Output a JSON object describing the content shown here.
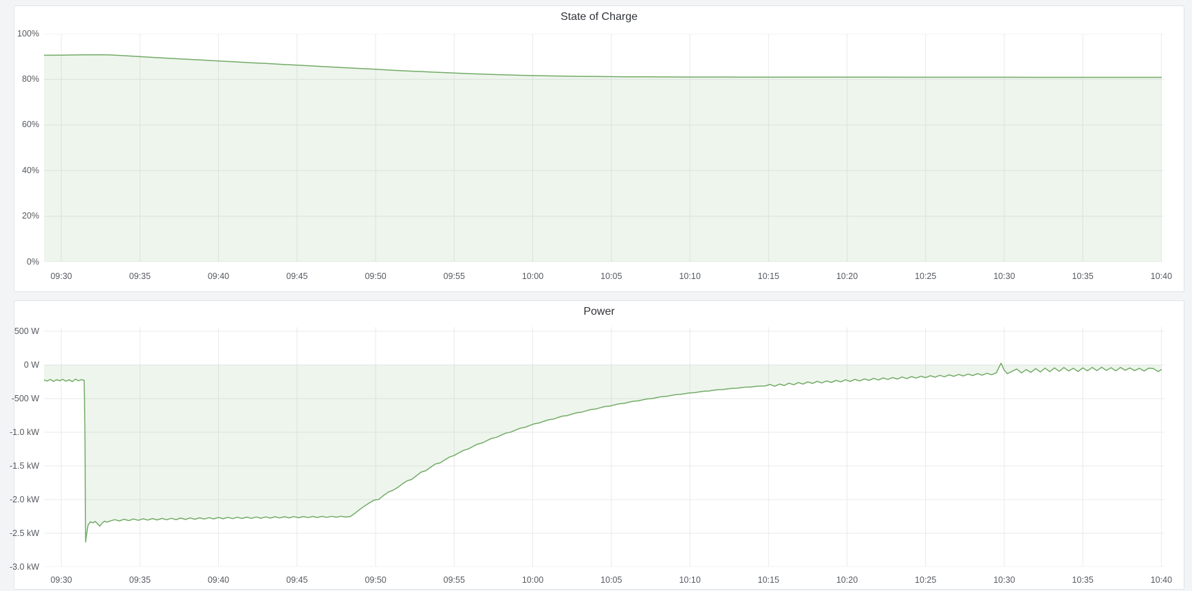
{
  "colors": {
    "page_background": "#f3f4f6",
    "panel_background": "#ffffff",
    "panel_border": "#dfe3e8",
    "grid": "#e9eaec",
    "axis_text": "#55595f",
    "title_text": "#303338",
    "series_line": "#72ab66",
    "series_fill": "rgba(104,168,92,0.11)"
  },
  "chart_data": [
    {
      "type": "area",
      "title": "State of Charge",
      "unit": "percent",
      "legend": "none",
      "grid": "on",
      "x_domain_min": -1.1,
      "x_domain_max": 70.2,
      "y_domain_min": 0,
      "y_domain_max": 100,
      "baseline": 0,
      "x_ticks": [
        {
          "t": 0,
          "label": "09:30"
        },
        {
          "t": 5,
          "label": "09:35"
        },
        {
          "t": 10,
          "label": "09:40"
        },
        {
          "t": 15,
          "label": "09:45"
        },
        {
          "t": 20,
          "label": "09:50"
        },
        {
          "t": 25,
          "label": "09:55"
        },
        {
          "t": 30,
          "label": "10:00"
        },
        {
          "t": 35,
          "label": "10:05"
        },
        {
          "t": 40,
          "label": "10:10"
        },
        {
          "t": 45,
          "label": "10:15"
        },
        {
          "t": 50,
          "label": "10:20"
        },
        {
          "t": 55,
          "label": "10:25"
        },
        {
          "t": 60,
          "label": "10:30"
        },
        {
          "t": 65,
          "label": "10:35"
        },
        {
          "t": 70,
          "label": "10:40"
        }
      ],
      "y_ticks": [
        {
          "v": 100,
          "label": "100%"
        },
        {
          "v": 80,
          "label": "80%"
        },
        {
          "v": 60,
          "label": "60%"
        },
        {
          "v": 40,
          "label": "40%"
        },
        {
          "v": 20,
          "label": "20%"
        },
        {
          "v": 0,
          "label": "0%"
        }
      ],
      "points": [
        [
          -1.1,
          90.55
        ],
        [
          0,
          90.6
        ],
        [
          1,
          90.68
        ],
        [
          2,
          90.74
        ],
        [
          2.6,
          90.78
        ],
        [
          3.2,
          90.66
        ],
        [
          4,
          90.35
        ],
        [
          5,
          89.95
        ],
        [
          6,
          89.55
        ],
        [
          7,
          89.15
        ],
        [
          8,
          88.8
        ],
        [
          9,
          88.42
        ],
        [
          10,
          88.05
        ],
        [
          11,
          87.68
        ],
        [
          12,
          87.3
        ],
        [
          13,
          86.95
        ],
        [
          14,
          86.58
        ],
        [
          15,
          86.2
        ],
        [
          16,
          85.85
        ],
        [
          17,
          85.48
        ],
        [
          18,
          85.1
        ],
        [
          19,
          84.75
        ],
        [
          20,
          84.4
        ],
        [
          21,
          84.02
        ],
        [
          22,
          83.68
        ],
        [
          23,
          83.35
        ],
        [
          24,
          83.05
        ],
        [
          25,
          82.75
        ],
        [
          26,
          82.48
        ],
        [
          27,
          82.22
        ],
        [
          28,
          82.0
        ],
        [
          29,
          81.8
        ],
        [
          30,
          81.63
        ],
        [
          31,
          81.5
        ],
        [
          32,
          81.4
        ],
        [
          33,
          81.3
        ],
        [
          34,
          81.22
        ],
        [
          35,
          81.16
        ],
        [
          36,
          81.11
        ],
        [
          37,
          81.07
        ],
        [
          38,
          81.04
        ],
        [
          39,
          81.02
        ],
        [
          40,
          81.0
        ],
        [
          42,
          80.98
        ],
        [
          44,
          80.96
        ],
        [
          46,
          80.95
        ],
        [
          48,
          80.94
        ],
        [
          50,
          80.93
        ],
        [
          52,
          80.92
        ],
        [
          54,
          80.91
        ],
        [
          56,
          80.9
        ],
        [
          58,
          80.9
        ],
        [
          60,
          80.89
        ],
        [
          62,
          80.88
        ],
        [
          64,
          80.88
        ],
        [
          66,
          80.87
        ],
        [
          68,
          80.87
        ],
        [
          70,
          80.86
        ]
      ]
    },
    {
      "type": "area",
      "title": "Power",
      "unit": "watt",
      "legend": "none",
      "grid": "on",
      "x_domain_min": -1.1,
      "x_domain_max": 70.2,
      "y_domain_min": -3000,
      "y_domain_max": 561,
      "baseline": 0,
      "x_ticks": [
        {
          "t": 0,
          "label": "09:30"
        },
        {
          "t": 5,
          "label": "09:35"
        },
        {
          "t": 10,
          "label": "09:40"
        },
        {
          "t": 15,
          "label": "09:45"
        },
        {
          "t": 20,
          "label": "09:50"
        },
        {
          "t": 25,
          "label": "09:55"
        },
        {
          "t": 30,
          "label": "10:00"
        },
        {
          "t": 35,
          "label": "10:05"
        },
        {
          "t": 40,
          "label": "10:10"
        },
        {
          "t": 45,
          "label": "10:15"
        },
        {
          "t": 50,
          "label": "10:20"
        },
        {
          "t": 55,
          "label": "10:25"
        },
        {
          "t": 60,
          "label": "10:30"
        },
        {
          "t": 65,
          "label": "10:35"
        },
        {
          "t": 70,
          "label": "10:40"
        }
      ],
      "y_ticks": [
        {
          "v": 500,
          "label": "500 W"
        },
        {
          "v": 0,
          "label": "0 W"
        },
        {
          "v": -500,
          "label": "-500 W"
        },
        {
          "v": -1000,
          "label": "-1.0 kW"
        },
        {
          "v": -1500,
          "label": "-1.5 kW"
        },
        {
          "v": -2000,
          "label": "-2.0 kW"
        },
        {
          "v": -2500,
          "label": "-2.5 kW"
        },
        {
          "v": -3000,
          "label": "-3.0 kW"
        }
      ],
      "points": [
        [
          -1.1,
          -225
        ],
        [
          -0.9,
          -240
        ],
        [
          -0.7,
          -215
        ],
        [
          -0.5,
          -245
        ],
        [
          -0.3,
          -220
        ],
        [
          -0.1,
          -235
        ],
        [
          0.1,
          -215
        ],
        [
          0.3,
          -242
        ],
        [
          0.5,
          -222
        ],
        [
          0.7,
          -248
        ],
        [
          0.9,
          -212
        ],
        [
          1.1,
          -236
        ],
        [
          1.3,
          -218
        ],
        [
          1.45,
          -230
        ],
        [
          1.5,
          -900
        ],
        [
          1.55,
          -2630
        ],
        [
          1.62,
          -2500
        ],
        [
          1.7,
          -2380
        ],
        [
          1.85,
          -2330
        ],
        [
          2.0,
          -2345
        ],
        [
          2.15,
          -2325
        ],
        [
          2.3,
          -2355
        ],
        [
          2.45,
          -2395
        ],
        [
          2.6,
          -2350
        ],
        [
          2.75,
          -2320
        ],
        [
          2.9,
          -2335
        ],
        [
          3.1,
          -2318
        ],
        [
          3.4,
          -2298
        ],
        [
          3.7,
          -2316
        ],
        [
          4.0,
          -2292
        ],
        [
          4.3,
          -2312
        ],
        [
          4.6,
          -2288
        ],
        [
          4.9,
          -2308
        ],
        [
          5.2,
          -2285
        ],
        [
          5.5,
          -2304
        ],
        [
          5.8,
          -2282
        ],
        [
          6.1,
          -2302
        ],
        [
          6.4,
          -2280
        ],
        [
          6.7,
          -2299
        ],
        [
          7.0,
          -2278
        ],
        [
          7.3,
          -2297
        ],
        [
          7.6,
          -2275
        ],
        [
          7.9,
          -2295
        ],
        [
          8.2,
          -2272
        ],
        [
          8.5,
          -2292
        ],
        [
          8.8,
          -2270
        ],
        [
          9.1,
          -2289
        ],
        [
          9.4,
          -2268
        ],
        [
          9.7,
          -2287
        ],
        [
          10.0,
          -2265
        ],
        [
          10.3,
          -2285
        ],
        [
          10.6,
          -2263
        ],
        [
          10.9,
          -2283
        ],
        [
          11.2,
          -2262
        ],
        [
          11.5,
          -2281
        ],
        [
          11.8,
          -2260
        ],
        [
          12.1,
          -2279
        ],
        [
          12.4,
          -2258
        ],
        [
          12.7,
          -2277
        ],
        [
          13.0,
          -2257
        ],
        [
          13.3,
          -2275
        ],
        [
          13.6,
          -2255
        ],
        [
          13.9,
          -2273
        ],
        [
          14.2,
          -2254
        ],
        [
          14.5,
          -2271
        ],
        [
          14.8,
          -2252
        ],
        [
          15.1,
          -2269
        ],
        [
          15.4,
          -2251
        ],
        [
          15.7,
          -2267
        ],
        [
          16.0,
          -2250
        ],
        [
          16.3,
          -2265
        ],
        [
          16.6,
          -2249
        ],
        [
          16.9,
          -2263
        ],
        [
          17.2,
          -2248
        ],
        [
          17.5,
          -2261
        ],
        [
          17.8,
          -2247
        ],
        [
          18.1,
          -2259
        ],
        [
          18.4,
          -2250
        ],
        [
          18.7,
          -2200
        ],
        [
          19.0,
          -2145
        ],
        [
          19.3,
          -2095
        ],
        [
          19.6,
          -2050
        ],
        [
          19.9,
          -2008
        ],
        [
          20.2,
          -1998
        ],
        [
          20.5,
          -1940
        ],
        [
          20.8,
          -1890
        ],
        [
          21.1,
          -1862
        ],
        [
          21.4,
          -1820
        ],
        [
          21.7,
          -1768
        ],
        [
          22.0,
          -1722
        ],
        [
          22.3,
          -1700
        ],
        [
          22.6,
          -1645
        ],
        [
          22.9,
          -1592
        ],
        [
          23.2,
          -1570
        ],
        [
          23.5,
          -1520
        ],
        [
          23.8,
          -1472
        ],
        [
          24.1,
          -1455
        ],
        [
          24.4,
          -1410
        ],
        [
          24.7,
          -1368
        ],
        [
          25.0,
          -1345
        ],
        [
          25.3,
          -1305
        ],
        [
          25.6,
          -1268
        ],
        [
          25.9,
          -1248
        ],
        [
          26.2,
          -1210
        ],
        [
          26.5,
          -1175
        ],
        [
          26.8,
          -1158
        ],
        [
          27.1,
          -1122
        ],
        [
          27.4,
          -1090
        ],
        [
          27.7,
          -1075
        ],
        [
          28.0,
          -1042
        ],
        [
          28.3,
          -1012
        ],
        [
          28.6,
          -998
        ],
        [
          28.9,
          -968
        ],
        [
          29.2,
          -940
        ],
        [
          29.5,
          -928
        ],
        [
          29.8,
          -900
        ],
        [
          30.1,
          -875
        ],
        [
          30.4,
          -862
        ],
        [
          30.7,
          -838
        ],
        [
          31.0,
          -815
        ],
        [
          31.3,
          -805
        ],
        [
          31.6,
          -782
        ],
        [
          31.9,
          -760
        ],
        [
          32.2,
          -752
        ],
        [
          32.5,
          -730
        ],
        [
          32.8,
          -710
        ],
        [
          33.1,
          -702
        ],
        [
          33.4,
          -682
        ],
        [
          33.7,
          -662
        ],
        [
          34.0,
          -655
        ],
        [
          34.3,
          -636
        ],
        [
          34.6,
          -618
        ],
        [
          34.9,
          -612
        ],
        [
          35.2,
          -594
        ],
        [
          35.5,
          -578
        ],
        [
          35.8,
          -572
        ],
        [
          36.1,
          -555
        ],
        [
          36.4,
          -540
        ],
        [
          36.7,
          -535
        ],
        [
          37.0,
          -519
        ],
        [
          37.3,
          -505
        ],
        [
          37.6,
          -500
        ],
        [
          37.9,
          -485
        ],
        [
          38.2,
          -472
        ],
        [
          38.5,
          -468
        ],
        [
          38.8,
          -454
        ],
        [
          39.1,
          -442
        ],
        [
          39.4,
          -438
        ],
        [
          39.7,
          -426
        ],
        [
          40.0,
          -415
        ],
        [
          40.3,
          -412
        ],
        [
          40.6,
          -400
        ],
        [
          40.9,
          -390
        ],
        [
          41.2,
          -388
        ],
        [
          41.5,
          -377
        ],
        [
          41.8,
          -368
        ],
        [
          42.1,
          -366
        ],
        [
          42.4,
          -356
        ],
        [
          42.7,
          -348
        ],
        [
          43.0,
          -346
        ],
        [
          43.3,
          -337
        ],
        [
          43.6,
          -330
        ],
        [
          43.9,
          -328
        ],
        [
          44.2,
          -320
        ],
        [
          44.5,
          -313
        ],
        [
          44.8,
          -312
        ],
        [
          45.1,
          -290
        ],
        [
          45.4,
          -318
        ],
        [
          45.7,
          -285
        ],
        [
          46.0,
          -305
        ],
        [
          46.3,
          -272
        ],
        [
          46.6,
          -295
        ],
        [
          46.9,
          -262
        ],
        [
          47.2,
          -285
        ],
        [
          47.5,
          -252
        ],
        [
          47.8,
          -275
        ],
        [
          48.1,
          -245
        ],
        [
          48.4,
          -268
        ],
        [
          48.7,
          -238
        ],
        [
          49.0,
          -260
        ],
        [
          49.3,
          -230
        ],
        [
          49.6,
          -252
        ],
        [
          49.9,
          -222
        ],
        [
          50.2,
          -245
        ],
        [
          50.5,
          -215
        ],
        [
          50.8,
          -238
        ],
        [
          51.1,
          -208
        ],
        [
          51.4,
          -230
        ],
        [
          51.7,
          -200
        ],
        [
          52.0,
          -224
        ],
        [
          52.3,
          -194
        ],
        [
          52.6,
          -216
        ],
        [
          52.9,
          -188
        ],
        [
          53.2,
          -210
        ],
        [
          53.5,
          -180
        ],
        [
          53.8,
          -203
        ],
        [
          54.1,
          -174
        ],
        [
          54.4,
          -196
        ],
        [
          54.7,
          -168
        ],
        [
          55.0,
          -190
        ],
        [
          55.3,
          -160
        ],
        [
          55.6,
          -183
        ],
        [
          55.9,
          -155
        ],
        [
          56.2,
          -176
        ],
        [
          56.5,
          -148
        ],
        [
          56.8,
          -170
        ],
        [
          57.1,
          -142
        ],
        [
          57.4,
          -164
        ],
        [
          57.7,
          -136
        ],
        [
          58.0,
          -158
        ],
        [
          58.3,
          -130
        ],
        [
          58.6,
          -152
        ],
        [
          58.9,
          -125
        ],
        [
          59.2,
          -146
        ],
        [
          59.5,
          -118
        ],
        [
          59.8,
          25
        ],
        [
          60.0,
          -80
        ],
        [
          60.2,
          -130
        ],
        [
          60.5,
          -95
        ],
        [
          60.8,
          -60
        ],
        [
          61.1,
          -120
        ],
        [
          61.4,
          -70
        ],
        [
          61.7,
          -110
        ],
        [
          62.0,
          -55
        ],
        [
          62.3,
          -105
        ],
        [
          62.6,
          -48
        ],
        [
          62.9,
          -100
        ],
        [
          63.2,
          -45
        ],
        [
          63.5,
          -95
        ],
        [
          63.8,
          -40
        ],
        [
          64.1,
          -90
        ],
        [
          64.4,
          -50
        ],
        [
          64.7,
          -98
        ],
        [
          65.0,
          -45
        ],
        [
          65.3,
          -88
        ],
        [
          65.6,
          -38
        ],
        [
          65.9,
          -85
        ],
        [
          66.2,
          -35
        ],
        [
          66.5,
          -82
        ],
        [
          66.8,
          -42
        ],
        [
          67.1,
          -88
        ],
        [
          67.4,
          -38
        ],
        [
          67.7,
          -80
        ],
        [
          68.0,
          -45
        ],
        [
          68.3,
          -85
        ],
        [
          68.6,
          -50
        ],
        [
          68.9,
          -90
        ],
        [
          69.2,
          -48
        ],
        [
          69.5,
          -55
        ],
        [
          69.8,
          -100
        ],
        [
          70.0,
          -70
        ]
      ]
    }
  ]
}
